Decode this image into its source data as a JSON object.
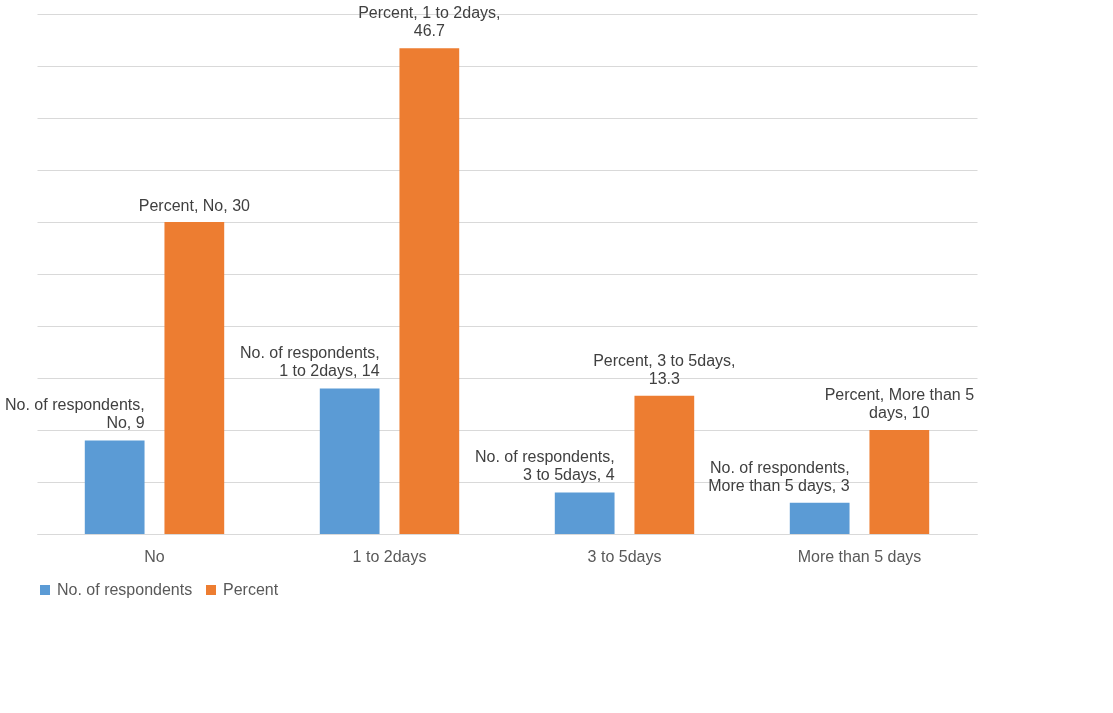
{
  "chart_data": {
    "type": "bar",
    "categories": [
      "No",
      "1 to 2days",
      "3 to 5days",
      "More than 5 days"
    ],
    "series": [
      {
        "name": "No. of respondents",
        "color": "#5b9bd5",
        "values": [
          9,
          14,
          4,
          3
        ],
        "value_labels": [
          "No. of respondents, No, 9",
          "No. of respondents, 1 to 2days, 14",
          "No. of respondents, 3 to 5days, 4",
          "No. of respondents, More than 5 days, 3"
        ]
      },
      {
        "name": "Percent",
        "color": "#ed7d31",
        "values": [
          30,
          46.7,
          13.3,
          10
        ],
        "value_labels": [
          "Percent, No, 30",
          "Percent, 1 to 2days, 46.7",
          "Percent, 3 to 5days, 13.3",
          "Percent, More than 5 days, 10"
        ]
      }
    ],
    "ylim": [
      0,
      50
    ],
    "yticks": [
      {
        "value": 0,
        "label": null
      },
      {
        "value": 5,
        "label": null
      },
      {
        "value": 10,
        "label": null
      },
      {
        "value": 15,
        "label": null
      },
      {
        "value": 20,
        "label": null
      },
      {
        "value": 25,
        "label": null
      },
      {
        "value": 30,
        "label": null
      },
      {
        "value": 35,
        "label": null
      },
      {
        "value": 40,
        "label": null
      },
      {
        "value": 45,
        "label": null
      },
      {
        "value": 50,
        "label": null
      }
    ],
    "tick_labels": "x",
    "grid": "y",
    "legend": "bottom"
  }
}
